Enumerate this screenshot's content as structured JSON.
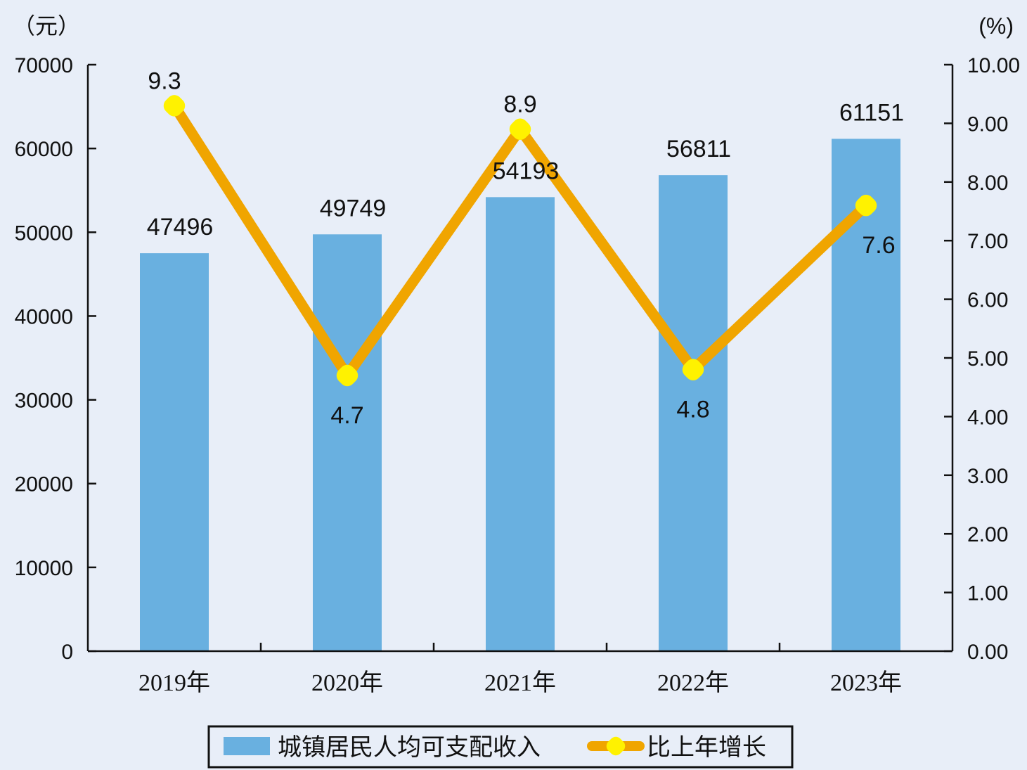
{
  "chart_data": {
    "type": "bar",
    "categories": [
      "2019年",
      "2020年",
      "2021年",
      "2022年",
      "2023年"
    ],
    "series": [
      {
        "name": "城镇居民人均可支配收入",
        "type": "bar",
        "axis": "left",
        "values": [
          47496,
          49749,
          54193,
          56811,
          61151
        ],
        "color": "#69b0e0"
      },
      {
        "name": "比上年增长",
        "type": "line",
        "axis": "right",
        "values": [
          9.3,
          4.7,
          8.9,
          4.8,
          7.6
        ],
        "color": "#f0a500",
        "marker_color": "#fff200"
      }
    ],
    "left_axis": {
      "unit": "（元）",
      "ylim": [
        0,
        70000
      ],
      "ticks": [
        "0",
        "10000",
        "20000",
        "30000",
        "40000",
        "50000",
        "60000",
        "70000"
      ]
    },
    "right_axis": {
      "unit": "(%)",
      "ylim": [
        0,
        10
      ],
      "ticks": [
        "0.00",
        "1.00",
        "2.00",
        "3.00",
        "4.00",
        "5.00",
        "6.00",
        "7.00",
        "8.00",
        "9.00",
        "10.00"
      ]
    },
    "bar_labels": [
      "47496",
      "49749",
      "54193",
      "56811",
      "61151"
    ],
    "line_labels": [
      "9.3",
      "4.7",
      "8.9",
      "4.8",
      "7.6"
    ],
    "legend": {
      "position": "bottom",
      "items": [
        "城镇居民人均可支配收入",
        "比上年增长"
      ]
    },
    "grid": false
  }
}
